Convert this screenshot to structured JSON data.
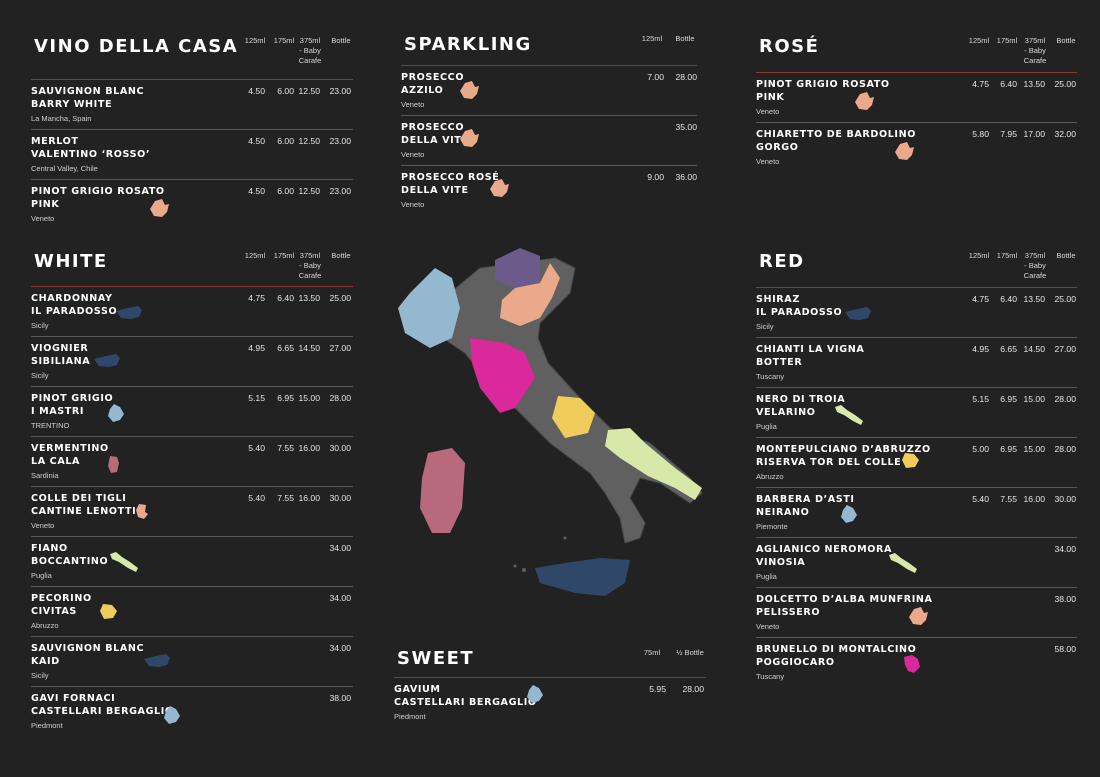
{
  "sections": {
    "casa": {
      "title": "VINO DELLA CASA",
      "cols": [
        "125ml",
        "175ml",
        "375ml\n- Baby\nCarafe",
        "Bottle"
      ],
      "wines": [
        {
          "name": [
            "SAUVIGNON BLANC",
            "BARRY WHITE"
          ],
          "region": "La Mancha, Spain",
          "prices": [
            "4.50",
            "6.00",
            "12.50",
            "23.00"
          ],
          "icon": ""
        },
        {
          "name": [
            "MERLOT",
            "VALENTINO ‘ROSSO’"
          ],
          "region": "Central Valley, Chile",
          "prices": [
            "4.50",
            "6.00",
            "12.50",
            "23.00"
          ],
          "icon": ""
        },
        {
          "name": [
            "PINOT GRIGIO ROSATO",
            "PINK"
          ],
          "region": "Veneto",
          "prices": [
            "4.50",
            "6.00",
            "12.50",
            "23.00"
          ],
          "icon": "veneto"
        }
      ]
    },
    "sparkling": {
      "title": "SPARKLING",
      "cols": [
        "125ml",
        "Bottle"
      ],
      "wines": [
        {
          "name": [
            "PROSECCO",
            "AZZILO"
          ],
          "region": "Veneto",
          "prices": [
            "7.00",
            "28.00"
          ],
          "icon": "veneto"
        },
        {
          "name": [
            "PROSECCO",
            "DELLA VITE"
          ],
          "region": "Veneto",
          "prices": [
            "",
            "35.00"
          ],
          "icon": "veneto"
        },
        {
          "name": [
            "PROSECCO ROSÉ",
            "DELLA VITE"
          ],
          "region": "Veneto",
          "prices": [
            "9.00",
            "36.00"
          ],
          "icon": "veneto"
        }
      ]
    },
    "rose": {
      "title": "ROSÉ",
      "cols": [
        "125ml",
        "175ml",
        "375ml\n- Baby\nCarafe",
        "Bottle"
      ],
      "wines": [
        {
          "name": [
            "PINOT GRIGIO ROSATO",
            "PINK"
          ],
          "region": "Veneto",
          "prices": [
            "4.75",
            "6.40",
            "13.50",
            "25.00"
          ],
          "icon": "veneto"
        },
        {
          "name": [
            "CHIARETTO DE BARDOLINO",
            "GORGO"
          ],
          "region": "Veneto",
          "prices": [
            "5.80",
            "7.95",
            "17.00",
            "32.00"
          ],
          "icon": "veneto"
        }
      ]
    },
    "white": {
      "title": "WHITE",
      "cols": [
        "125ml",
        "175ml",
        "375ml\n- Baby\nCarafe",
        "Bottle"
      ],
      "wines": [
        {
          "name": [
            "CHARDONNAY",
            "IL PARADOSSO"
          ],
          "region": "Sicily",
          "prices": [
            "4.75",
            "6.40",
            "13.50",
            "25.00"
          ],
          "icon": "sicily"
        },
        {
          "name": [
            "VIOGNIER",
            "SIBILIANA"
          ],
          "region": "Sicily",
          "prices": [
            "4.95",
            "6.65",
            "14.50",
            "27.00"
          ],
          "icon": "sicily"
        },
        {
          "name": [
            "PINOT GRIGIO",
            "I MASTRI"
          ],
          "region": "TRENTINO",
          "prices": [
            "5.15",
            "6.95",
            "15.00",
            "28.00"
          ],
          "icon": "piemonte"
        },
        {
          "name": [
            "VERMENTINO",
            "LA CALA"
          ],
          "region": "Sardinia",
          "prices": [
            "5.40",
            "7.55",
            "16.00",
            "30.00"
          ],
          "icon": "sardinia"
        },
        {
          "name": [
            "COLLE DEI TIGLI",
            "CANTINE LENOTTI"
          ],
          "region": "Veneto",
          "prices": [
            "5.40",
            "7.55",
            "16.00",
            "30.00"
          ],
          "icon": "veneto-small"
        },
        {
          "name": [
            "FIANO",
            "BOCCANTINO"
          ],
          "region": "Puglia",
          "prices": [
            "",
            "",
            "",
            "34.00"
          ],
          "icon": "puglia"
        },
        {
          "name": [
            "PECORINO",
            "CIVITAS"
          ],
          "region": "Abruzzo",
          "prices": [
            "",
            "",
            "",
            "34.00"
          ],
          "icon": "abruzzo"
        },
        {
          "name": [
            "SAUVIGNON BLANC",
            "KAID"
          ],
          "region": "Sicily",
          "prices": [
            "",
            "",
            "",
            "34.00"
          ],
          "icon": "sicily"
        },
        {
          "name": [
            "GAVI FORNACI",
            "CASTELLARI BERGAGLIO"
          ],
          "region": "Piedmont",
          "prices": [
            "",
            "",
            "",
            "38.00"
          ],
          "icon": "piemonte"
        }
      ]
    },
    "red": {
      "title": "RED",
      "cols": [
        "125ml",
        "175ml",
        "375ml\n- Baby\nCarafe",
        "Bottle"
      ],
      "wines": [
        {
          "name": [
            "SHIRAZ",
            "IL PARADOSSO"
          ],
          "region": "Sicily",
          "prices": [
            "4.75",
            "6.40",
            "13.50",
            "25.00"
          ],
          "icon": "sicily"
        },
        {
          "name": [
            "CHIANTI LA VIGNA",
            "BOTTER"
          ],
          "region": "Tuscany",
          "prices": [
            "4.95",
            "6.65",
            "14.50",
            "27.00"
          ],
          "icon": ""
        },
        {
          "name": [
            "NERO DI TROIA",
            "VELARINO"
          ],
          "region": "Puglia",
          "prices": [
            "5.15",
            "6.95",
            "15.00",
            "28.00"
          ],
          "icon": "puglia"
        },
        {
          "name": [
            "MONTEPULCIANO D’ABRUZZO",
            "RISERVA TOR DEL COLLE"
          ],
          "region": "Abruzzo",
          "prices": [
            "5.00",
            "6.95",
            "15.00",
            "28.00"
          ],
          "icon": "abruzzo"
        },
        {
          "name": [
            "BARBERA D’ASTI",
            "NEIRANO"
          ],
          "region": "Piemonte",
          "prices": [
            "5.40",
            "7.55",
            "16.00",
            "30.00"
          ],
          "icon": "piemonte"
        },
        {
          "name": [
            "AGLIANICO NEROMORA",
            "VINOSIA"
          ],
          "region": "Puglia",
          "prices": [
            "",
            "",
            "",
            "34.00"
          ],
          "icon": "puglia"
        },
        {
          "name": [
            "DOLCETTO D’ALBA MUNFRINA",
            "PELISSERO"
          ],
          "region": "Veneto",
          "prices": [
            "",
            "",
            "",
            "38.00"
          ],
          "icon": "veneto"
        },
        {
          "name": [
            "BRUNELLO DI MONTALCINO",
            "POGGIOCARO"
          ],
          "region": "Tuscany",
          "prices": [
            "",
            "",
            "",
            "58.00"
          ],
          "icon": "tuscany"
        }
      ]
    },
    "sweet": {
      "title": "SWEET",
      "cols": [
        "75ml",
        "½ Bottle"
      ],
      "wines": [
        {
          "name": [
            "GAVIUM",
            "CASTELLARI BERGAGLIO"
          ],
          "region": "Piedmont",
          "prices": [
            "5.95",
            "28.00"
          ],
          "icon": "piemonte"
        }
      ]
    }
  },
  "colors": {
    "background": "#222222",
    "veneto": "#eaa98a",
    "sicily": "#2f4869",
    "piemonte": "#94b8d0",
    "sardinia": "#b86a7c",
    "puglia": "#d8e8a8",
    "abruzzo": "#f0cd5a",
    "tuscany": "#d9299a",
    "trentino": "#6b5a8a",
    "other_regions": "#606060"
  }
}
